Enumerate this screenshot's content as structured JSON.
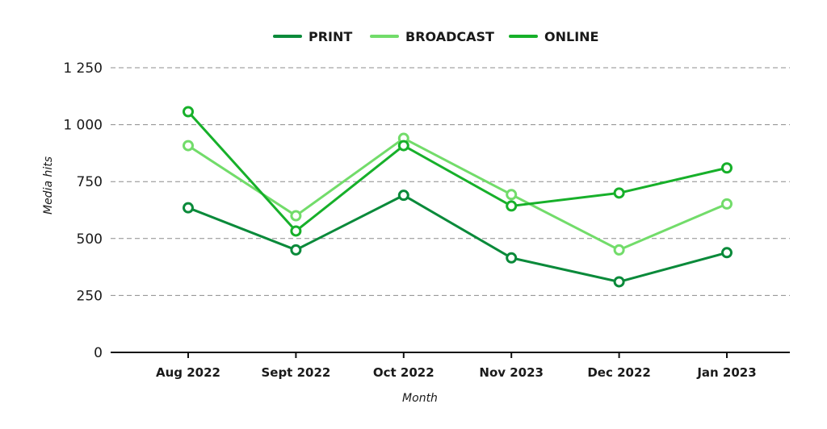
{
  "chart_data": {
    "type": "line",
    "title": "",
    "xlabel": "Month",
    "ylabel": "Media hits",
    "categories": [
      "Aug 2022",
      "Sept 2022",
      "Oct 2022",
      "Nov 2023",
      "Dec 2022",
      "Jan 2023"
    ],
    "ylim": [
      0,
      1250
    ],
    "yticks": [
      0,
      250,
      500,
      750,
      1000,
      1250
    ],
    "ytick_labels": [
      "0",
      "250",
      "500",
      "750",
      "1 000",
      "1 250"
    ],
    "grid": true,
    "legend_position": "top",
    "series": [
      {
        "name": "PRINT",
        "color": "#0a8a3a",
        "values": [
          635,
          450,
          690,
          415,
          310,
          438
        ]
      },
      {
        "name": "BROADCAST",
        "color": "#72dc6a",
        "values": [
          908,
          600,
          940,
          693,
          450,
          652
        ]
      },
      {
        "name": "ONLINE",
        "color": "#17b02a",
        "values": [
          1057,
          533,
          908,
          643,
          700,
          810
        ]
      }
    ]
  }
}
